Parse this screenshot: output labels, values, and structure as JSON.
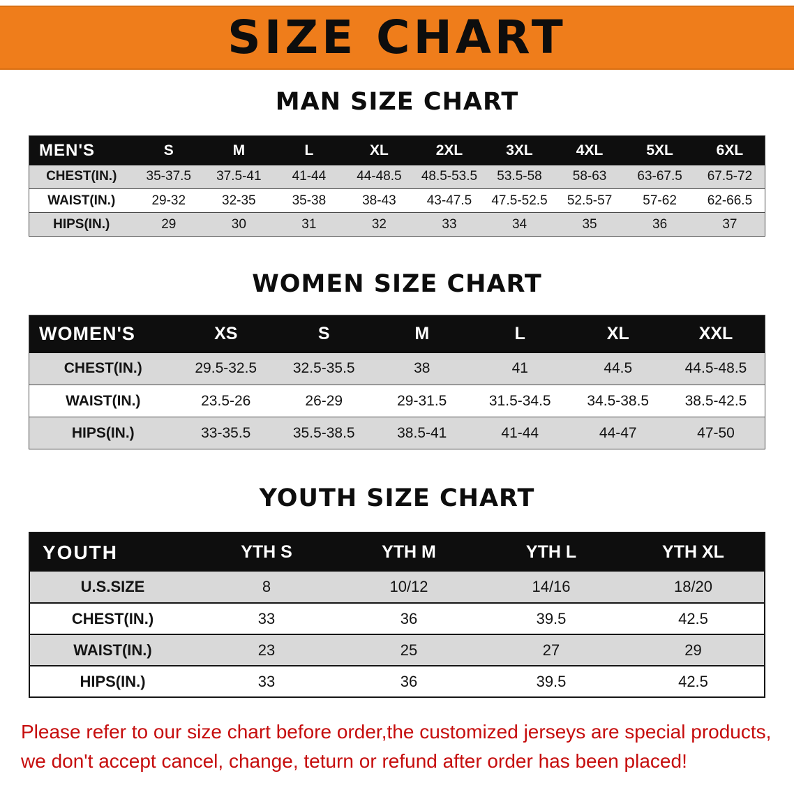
{
  "banner": {
    "title": "SIZE CHART",
    "bg_color": "#ef7d1b"
  },
  "chart_data": [
    {
      "type": "table",
      "title": "MAN SIZE CHART",
      "columns": [
        "MEN'S",
        "S",
        "M",
        "L",
        "XL",
        "2XL",
        "3XL",
        "4XL",
        "5XL",
        "6XL"
      ],
      "rows": [
        [
          "CHEST(IN.)",
          "35-37.5",
          "37.5-41",
          "41-44",
          "44-48.5",
          "48.5-53.5",
          "53.5-58",
          "58-63",
          "63-67.5",
          "67.5-72"
        ],
        [
          "WAIST(IN.)",
          "29-32",
          "32-35",
          "35-38",
          "38-43",
          "43-47.5",
          "47.5-52.5",
          "52.5-57",
          "57-62",
          "62-66.5"
        ],
        [
          "HIPS(IN.)",
          "29",
          "30",
          "31",
          "32",
          "33",
          "34",
          "35",
          "36",
          "37"
        ]
      ]
    },
    {
      "type": "table",
      "title": "WOMEN SIZE CHART",
      "columns": [
        "WOMEN'S",
        "XS",
        "S",
        "M",
        "L",
        "XL",
        "XXL"
      ],
      "rows": [
        [
          "CHEST(IN.)",
          "29.5-32.5",
          "32.5-35.5",
          "38",
          "41",
          "44.5",
          "44.5-48.5"
        ],
        [
          "WAIST(IN.)",
          "23.5-26",
          "26-29",
          "29-31.5",
          "31.5-34.5",
          "34.5-38.5",
          "38.5-42.5"
        ],
        [
          "HIPS(IN.)",
          "33-35.5",
          "35.5-38.5",
          "38.5-41",
          "41-44",
          "44-47",
          "47-50"
        ]
      ]
    },
    {
      "type": "table",
      "title": "YOUTH SIZE CHART",
      "columns": [
        "YOUTH",
        "YTH S",
        "YTH M",
        "YTH L",
        "YTH XL"
      ],
      "rows": [
        [
          "U.S.SIZE",
          "8",
          "10/12",
          "14/16",
          "18/20"
        ],
        [
          "CHEST(IN.)",
          "33",
          "36",
          "39.5",
          "42.5"
        ],
        [
          "WAIST(IN.)",
          "23",
          "25",
          "27",
          "29"
        ],
        [
          "HIPS(IN.)",
          "33",
          "36",
          "39.5",
          "42.5"
        ]
      ]
    }
  ],
  "footer": {
    "line1": "Please refer to our size chart before order,the customized jerseys are special products,",
    "line2": "we don't accept cancel, change, teturn or refund after order has been placed!",
    "text_color": "#c60d0d"
  }
}
